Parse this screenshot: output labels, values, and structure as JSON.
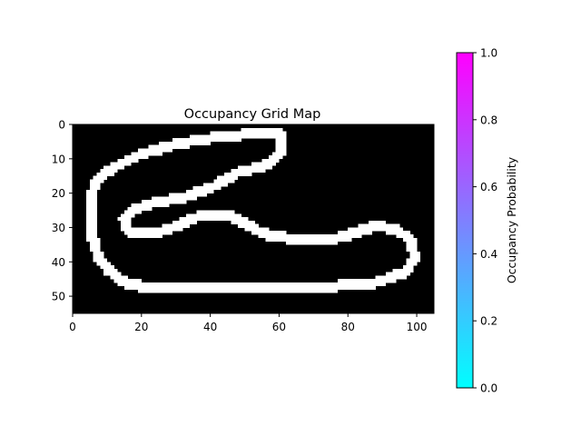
{
  "chart_data": {
    "type": "heatmap",
    "title": "Occupancy Grid Map",
    "xlabel": "",
    "ylabel": "",
    "grid": false,
    "grid_size": {
      "cols": 105,
      "rows": 55
    },
    "xlim": [
      0,
      105
    ],
    "ylim": [
      55,
      0
    ],
    "xticks": [
      0,
      20,
      40,
      60,
      80,
      100
    ],
    "yticks": [
      0,
      10,
      20,
      30,
      40,
      50
    ],
    "background_value": 0,
    "track_value": 1,
    "track_description": "closed loop corridor of occupied (white) cells forming a racetrack shape",
    "track_centerline": [
      [
        60,
        2.5
      ],
      [
        51,
        2.8
      ],
      [
        44,
        3.5
      ],
      [
        36,
        4.5
      ],
      [
        27,
        6.5
      ],
      [
        19,
        9
      ],
      [
        11,
        13
      ],
      [
        6.5,
        17
      ],
      [
        5,
        24
      ],
      [
        5.5,
        32
      ],
      [
        7.5,
        38.5
      ],
      [
        11,
        43
      ],
      [
        16,
        46.5
      ],
      [
        25,
        47.8
      ],
      [
        40,
        48
      ],
      [
        52,
        47.8
      ],
      [
        65,
        47.3
      ],
      [
        77,
        47
      ],
      [
        88,
        46
      ],
      [
        96.5,
        43
      ],
      [
        99.5,
        39
      ],
      [
        98,
        33.5
      ],
      [
        94,
        30.5
      ],
      [
        88,
        29.5
      ],
      [
        82,
        31.5
      ],
      [
        77,
        33
      ],
      [
        66,
        33.2
      ],
      [
        58,
        32.8
      ],
      [
        53,
        30.5
      ],
      [
        48,
        27.5
      ],
      [
        43,
        26
      ],
      [
        36,
        27
      ],
      [
        28,
        30.5
      ],
      [
        21,
        32
      ],
      [
        16,
        31
      ],
      [
        15,
        27.5
      ],
      [
        18,
        24.5
      ],
      [
        25,
        22.5
      ],
      [
        33,
        21
      ],
      [
        41,
        18
      ],
      [
        48,
        14
      ],
      [
        56,
        12
      ],
      [
        60.5,
        8
      ],
      [
        60,
        2.5
      ]
    ],
    "track_width": 3,
    "colorbar": {
      "label": "Occupancy Probability",
      "colormap": "cool",
      "color_min": "#00ffff",
      "color_max": "#ff00ff",
      "range": [
        0,
        1
      ],
      "ticks": [
        "0.0",
        "0.2",
        "0.4",
        "0.6",
        "0.8",
        "1.0"
      ]
    },
    "colors": {
      "occupied": "#ffffff",
      "free": "#000000",
      "axis": "#000000"
    }
  }
}
